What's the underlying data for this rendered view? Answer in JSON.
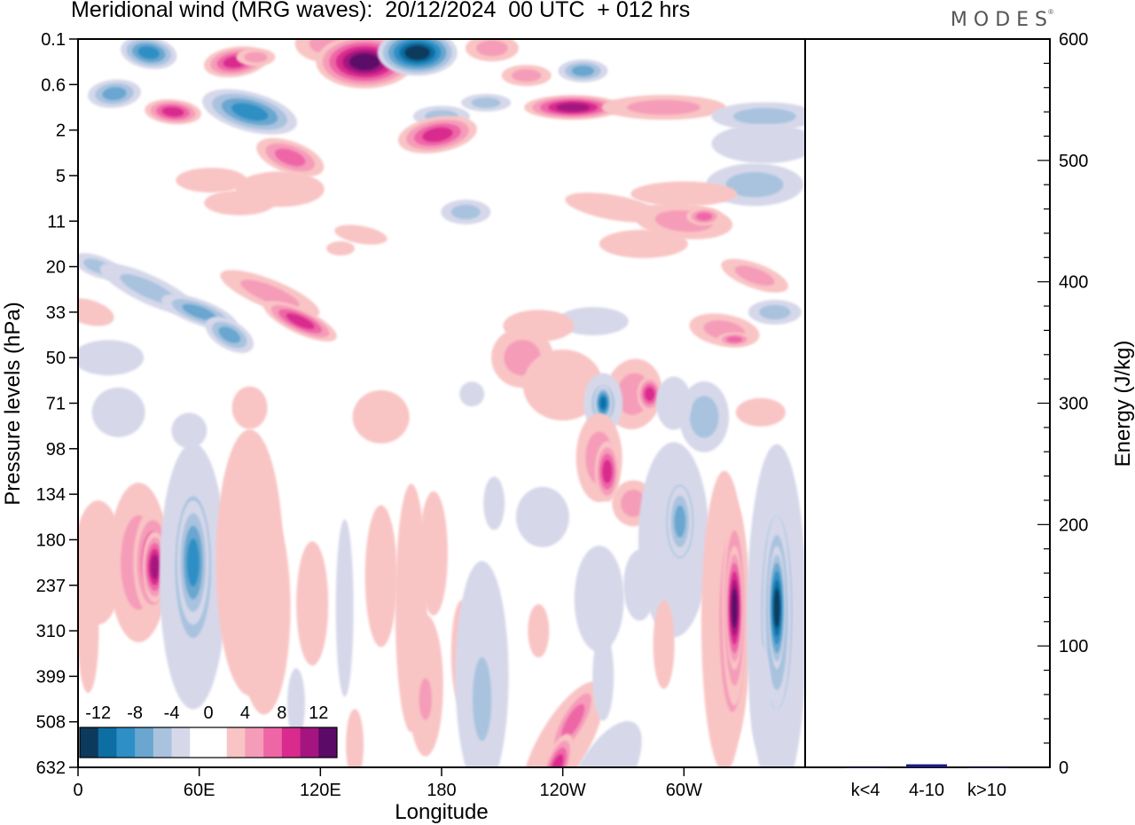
{
  "header": {
    "title": "Meridional wind (MRG waves):  20/12/2024  00 UTC  + 012 hrs",
    "brand": "MODES",
    "brand_mark": "®"
  },
  "chart_data": [
    {
      "type": "heatmap",
      "title": "Meridional wind (MRG waves):  20/12/2024  00 UTC  + 012 hrs",
      "xlabel": "Longitude",
      "ylabel": "Pressure levels (hPa)",
      "x_ticks": [
        "0",
        "60E",
        "120E",
        "180",
        "120W",
        "60W"
      ],
      "x_tick_values": [
        0,
        60,
        120,
        180,
        240,
        300
      ],
      "xlim": [
        0,
        360
      ],
      "y_ticks": [
        "0.1",
        "0.6",
        "2",
        "5",
        "11",
        "20",
        "33",
        "50",
        "71",
        "98",
        "134",
        "180",
        "237",
        "310",
        "399",
        "508",
        "632"
      ],
      "y_scale": "pressure levels (equally spaced labels, top = 0.1 hPa)",
      "colorbar": {
        "labels": [
          "-12",
          "-8",
          "-4",
          "0",
          "4",
          "8",
          "12"
        ],
        "colors": [
          "#0b3a5c",
          "#0d6ea3",
          "#2d8fc5",
          "#6aa6cf",
          "#a9c3df",
          "#d6d8ea",
          "#ffffff",
          "#ffffff",
          "#f9c4c4",
          "#f59cb9",
          "#ee66a6",
          "#d92a8e",
          "#a4157f",
          "#5c0a68"
        ],
        "placement": "bottom-left"
      },
      "features": [
        {
          "lon": 37,
          "plev": "180",
          "value": 10
        },
        {
          "lon": 57,
          "plev": "180",
          "value": -10
        },
        {
          "lon": 139,
          "plev": "0.1",
          "value": 14
        },
        {
          "lon": 164,
          "plev": "0.1",
          "value": -13
        },
        {
          "lon": 260,
          "plev": "71",
          "value": -10
        },
        {
          "lon": 262,
          "plev": "98",
          "value": 8
        },
        {
          "lon": 325,
          "plev": "237",
          "value": 14
        },
        {
          "lon": 345,
          "plev": "237",
          "value": -13
        }
      ]
    },
    {
      "type": "bar",
      "categories": [
        "k<4",
        "4-10",
        "k>10"
      ],
      "values": [
        0,
        2.5,
        0
      ],
      "ylabel": "Energy (J/kg)",
      "ylim": [
        0,
        600
      ],
      "y_ticks": [
        "0",
        "100",
        "200",
        "300",
        "400",
        "500",
        "600"
      ],
      "y_tick_values": [
        0,
        100,
        200,
        300,
        400,
        500,
        600
      ],
      "bar_color": "#1a1a80"
    }
  ]
}
